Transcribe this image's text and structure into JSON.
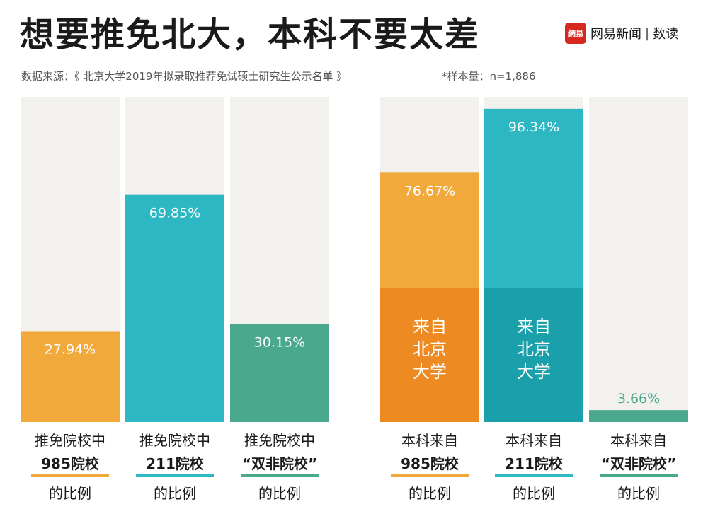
{
  "header": {
    "title": "想要推免北大，本科不要太差",
    "source": "数据来源：《 北京大学2019年拟录取推荐免试硕士研究生公示名单 》",
    "sample": "*样本量：n=1,886"
  },
  "logo": {
    "mark": "網易",
    "text": "网易新闻",
    "separator": "|",
    "sub": "数读"
  },
  "colors": {
    "background_bar": "#f2f1ee",
    "orange": "#f2a93b",
    "orange_dark": "#ed8b22",
    "teal": "#2db7c2",
    "teal_dark": "#1aa0aa",
    "green": "#4aa88d"
  },
  "chart_data": {
    "type": "bar",
    "ylim": [
      0,
      100
    ],
    "groups": [
      {
        "bars": [
          {
            "value": 27.94,
            "label": "27.94%",
            "color": "orange",
            "cat": [
              "推免院校中",
              "985院校",
              "的比例"
            ]
          },
          {
            "value": 69.85,
            "label": "69.85%",
            "color": "teal",
            "cat": [
              "推免院校中",
              "211院校",
              "的比例"
            ]
          },
          {
            "value": 30.15,
            "label": "30.15%",
            "color": "green",
            "cat": [
              "推免院校中",
              "“双非院校”",
              "的比例"
            ]
          }
        ]
      },
      {
        "bars": [
          {
            "value": 76.67,
            "label": "76.67%",
            "color": "orange",
            "sub_value": 41.3,
            "sub_color": "orange_dark",
            "sub_label": [
              "来自",
              "北京",
              "大学"
            ],
            "cat": [
              "本科来自",
              "985院校",
              "的比例"
            ]
          },
          {
            "value": 96.34,
            "label": "96.34%",
            "color": "teal",
            "sub_value": 41.3,
            "sub_color": "teal_dark",
            "sub_label": [
              "来自",
              "北京",
              "大学"
            ],
            "cat": [
              "本科来自",
              "211院校",
              "的比例"
            ]
          },
          {
            "value": 3.66,
            "label": "3.66%",
            "color": "green",
            "label_outside": true,
            "cat": [
              "本科来自",
              "“双非院校”",
              "的比例"
            ]
          }
        ]
      }
    ]
  }
}
